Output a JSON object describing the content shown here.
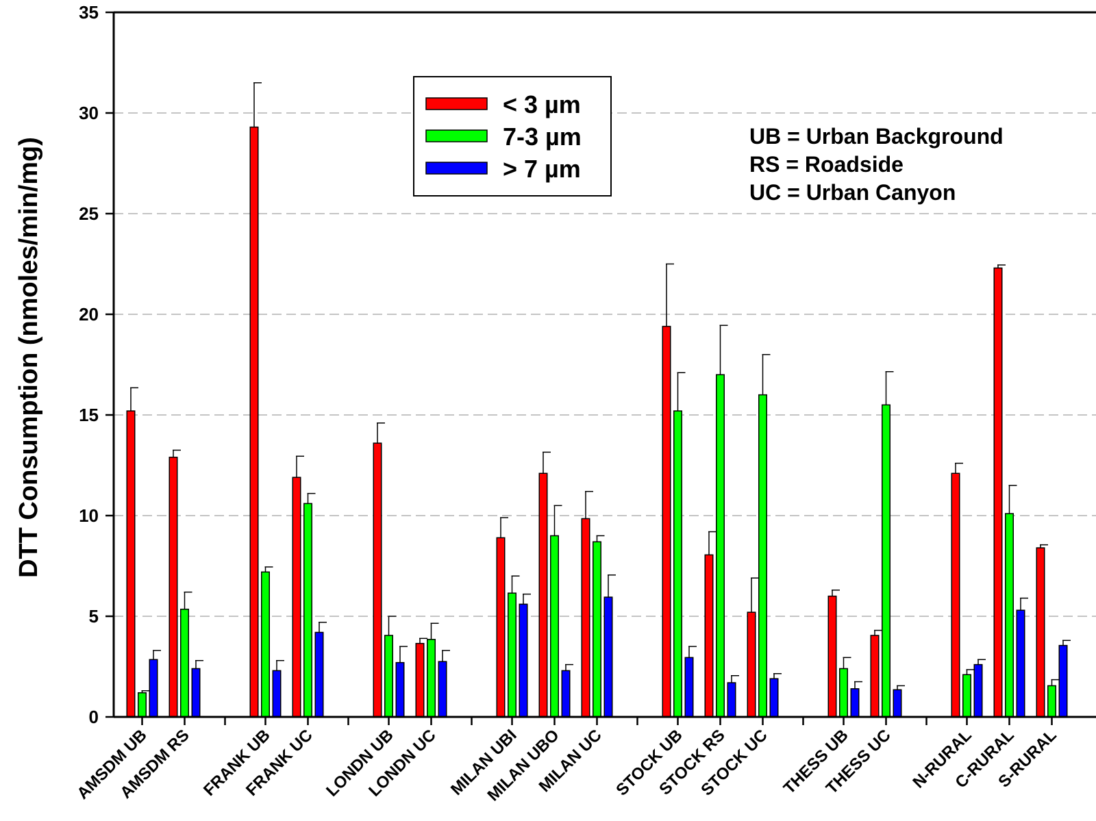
{
  "chart_data": {
    "type": "bar",
    "ylabel": "DTT Consumption (nmoles/min/mg)",
    "ylim": [
      0,
      35
    ],
    "yticks": [
      0,
      5,
      10,
      15,
      20,
      25,
      30,
      35
    ],
    "grid": "horizontal dashed",
    "legend_position": "top-center",
    "groups": [
      [
        "AMSDM UB",
        "AMSDM RS"
      ],
      [
        "FRANK UB",
        "FRANK UC"
      ],
      [
        "LONDN UB",
        "LONDN UC"
      ],
      [
        "MILAN UBI",
        "MILAN UBO",
        "MILAN UC"
      ],
      [
        "STOCK UB",
        "STOCK RS",
        "STOCK UC"
      ],
      [
        "THESS UB",
        "THESS UC"
      ],
      [
        "N-RURAL",
        "C-RURAL",
        "S-RURAL"
      ]
    ],
    "categories": [
      "AMSDM UB",
      "AMSDM RS",
      "FRANK UB",
      "FRANK UC",
      "LONDN UB",
      "LONDN UC",
      "MILAN UBI",
      "MILAN UBO",
      "MILAN UC",
      "STOCK UB",
      "STOCK RS",
      "STOCK UC",
      "THESS UB",
      "THESS UC",
      "N-RURAL",
      "C-RURAL",
      "S-RURAL"
    ],
    "series": [
      {
        "name": "< 3 µm",
        "color": "#ff0000",
        "values": [
          15.2,
          12.9,
          29.3,
          11.9,
          13.6,
          3.65,
          8.9,
          12.1,
          9.85,
          19.4,
          8.05,
          5.2,
          6.0,
          4.05,
          12.1,
          22.3,
          8.4
        ],
        "error": [
          1.15,
          0.35,
          2.2,
          1.05,
          1.0,
          0.25,
          1.0,
          1.05,
          1.35,
          3.1,
          1.15,
          1.7,
          0.3,
          0.25,
          0.5,
          0.15,
          0.15
        ]
      },
      {
        "name": "7-3 µm",
        "color": "#00ff00",
        "values": [
          1.2,
          5.35,
          7.2,
          10.6,
          4.05,
          3.85,
          6.15,
          9.0,
          8.7,
          15.2,
          17.0,
          16.0,
          2.4,
          15.5,
          2.1,
          10.1,
          1.55
        ],
        "error": [
          0.1,
          0.85,
          0.25,
          0.5,
          0.95,
          0.8,
          0.85,
          1.5,
          0.3,
          1.9,
          2.45,
          2.0,
          0.55,
          1.65,
          0.25,
          1.4,
          0.3
        ]
      },
      {
        "name": "> 7 µm",
        "color": "#0000ff",
        "values": [
          2.85,
          2.4,
          2.3,
          4.2,
          2.7,
          2.75,
          5.6,
          2.3,
          5.95,
          2.95,
          1.7,
          1.9,
          1.4,
          1.35,
          2.6,
          5.3,
          3.55
        ],
        "error": [
          0.45,
          0.4,
          0.5,
          0.5,
          0.8,
          0.55,
          0.5,
          0.3,
          1.1,
          0.55,
          0.35,
          0.25,
          0.35,
          0.2,
          0.25,
          0.6,
          0.25
        ]
      }
    ],
    "annotations": [
      "UB = Urban Background",
      "RS = Roadside",
      "UC = Urban Canyon"
    ]
  },
  "colors": {
    "grid": "#a0a0a0",
    "axis": "#000000"
  }
}
